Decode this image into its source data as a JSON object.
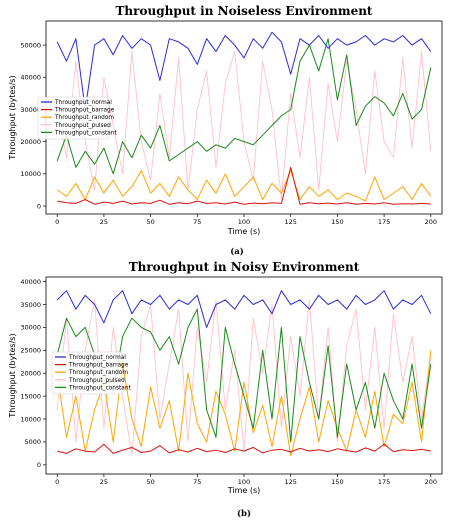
{
  "colors": {
    "Throughput_normal": "#2b2bd6",
    "Throughput_barrage": "#e01010",
    "Throughput_random": "#ffa500",
    "Throughput_pulsed": "#ffc0cb",
    "Throughput_constant": "#1a8a1a"
  },
  "chart_data": [
    {
      "type": "line",
      "title": "Throughput in Noiseless Environment",
      "xlabel": "Time (s)",
      "ylabel": "Throughput (bytes/s)",
      "caption": "(a)",
      "xlim": [
        -6,
        206
      ],
      "ylim": [
        -2500,
        57500
      ],
      "xticks": [
        0,
        25,
        50,
        75,
        100,
        125,
        150,
        175,
        200
      ],
      "yticks": [
        0,
        10000,
        20000,
        30000,
        40000,
        50000
      ],
      "legend": "center-left",
      "grid": false,
      "x": [
        0,
        5,
        10,
        15,
        20,
        25,
        30,
        35,
        40,
        45,
        50,
        55,
        60,
        65,
        70,
        75,
        80,
        85,
        90,
        95,
        100,
        105,
        110,
        115,
        120,
        125,
        130,
        135,
        140,
        145,
        150,
        155,
        160,
        165,
        170,
        175,
        180,
        185,
        190,
        195,
        200
      ],
      "series": [
        {
          "name": "Throughput_normal",
          "values": [
            51000,
            45000,
            52000,
            30000,
            50000,
            52000,
            47000,
            53000,
            49000,
            52000,
            50000,
            39000,
            52000,
            51000,
            49000,
            44000,
            52000,
            48000,
            53000,
            50000,
            46000,
            52000,
            49000,
            54000,
            51000,
            41000,
            52000,
            50000,
            53000,
            49000,
            52000,
            50000,
            51000,
            53000,
            50000,
            52000,
            51000,
            53000,
            50000,
            52000,
            48000
          ]
        },
        {
          "name": "Throughput_barrage",
          "values": [
            1500,
            1000,
            800,
            2000,
            500,
            1200,
            800,
            1500,
            600,
            1000,
            800,
            1800,
            500,
            1000,
            700,
            1500,
            800,
            1000,
            600,
            1200,
            500,
            900,
            700,
            1000,
            800,
            12000,
            500,
            1000,
            700,
            900,
            600,
            1000,
            500,
            800,
            600,
            1000,
            500,
            700,
            600,
            800,
            600
          ]
        },
        {
          "name": "Throughput_random",
          "values": [
            5000,
            3000,
            7000,
            2000,
            9000,
            4000,
            8000,
            3000,
            6000,
            11000,
            4000,
            7000,
            3000,
            9000,
            5000,
            2000,
            8000,
            4000,
            10000,
            3000,
            6000,
            9000,
            2000,
            7000,
            4000,
            11000,
            2000,
            6000,
            3000,
            5000,
            2000,
            4000,
            3000,
            1500,
            9000,
            2000,
            4000,
            6000,
            2000,
            7000,
            3000
          ]
        },
        {
          "name": "Throughput_pulsed",
          "values": [
            30000,
            15000,
            45000,
            20000,
            5000,
            40000,
            25000,
            10000,
            48000,
            20000,
            8000,
            35000,
            15000,
            46000,
            5000,
            30000,
            42000,
            12000,
            38000,
            48000,
            20000,
            8000,
            45000,
            30000,
            2000,
            35000,
            15000,
            40000,
            5000,
            38000,
            20000,
            45000,
            30000,
            10000,
            42000,
            20000,
            15000,
            46000,
            18000,
            48000,
            17000
          ]
        },
        {
          "name": "Throughput_constant",
          "values": [
            14000,
            22000,
            12000,
            17000,
            13000,
            18000,
            10000,
            20000,
            15000,
            22000,
            18000,
            25000,
            14000,
            16000,
            18000,
            20000,
            17000,
            19000,
            18000,
            21000,
            20000,
            19000,
            22000,
            25000,
            28000,
            30000,
            45000,
            50000,
            42000,
            52000,
            33000,
            47000,
            25000,
            31000,
            34000,
            32000,
            28000,
            35000,
            27000,
            30000,
            43000
          ]
        }
      ]
    },
    {
      "type": "line",
      "title": "Throughput in Noisy Environment",
      "xlabel": "Time (s)",
      "ylabel": "Throughput (bytes/s)",
      "caption": "(b)",
      "xlim": [
        -6,
        206
      ],
      "ylim": [
        -2000,
        41000
      ],
      "xticks": [
        0,
        25,
        50,
        75,
        100,
        125,
        150,
        175,
        200
      ],
      "yticks": [
        0,
        5000,
        10000,
        15000,
        20000,
        25000,
        30000,
        35000,
        40000
      ],
      "legend": "center-left",
      "grid": false,
      "x": [
        0,
        5,
        10,
        15,
        20,
        25,
        30,
        35,
        40,
        45,
        50,
        55,
        60,
        65,
        70,
        75,
        80,
        85,
        90,
        95,
        100,
        105,
        110,
        115,
        120,
        125,
        130,
        135,
        140,
        145,
        150,
        155,
        160,
        165,
        170,
        175,
        180,
        185,
        190,
        195,
        200
      ],
      "series": [
        {
          "name": "Throughput_normal",
          "values": [
            36000,
            38000,
            34000,
            37000,
            35000,
            31000,
            36000,
            38000,
            33000,
            36000,
            35000,
            37000,
            34000,
            36000,
            35000,
            37000,
            30000,
            35000,
            36000,
            34000,
            37000,
            35000,
            36000,
            33000,
            38000,
            35000,
            36000,
            34000,
            37000,
            35000,
            36000,
            34000,
            37000,
            35000,
            36000,
            38000,
            34000,
            36000,
            35000,
            37000,
            33000
          ]
        },
        {
          "name": "Throughput_barrage",
          "values": [
            3000,
            2500,
            3500,
            3000,
            2800,
            4500,
            2500,
            3200,
            3800,
            2700,
            3000,
            4200,
            2600,
            3300,
            2800,
            3600,
            2900,
            3200,
            2700,
            3500,
            3000,
            3800,
            2600,
            3200,
            3400,
            2800,
            3600,
            3000,
            3300,
            2900,
            3500,
            3100,
            2800,
            3700,
            3000,
            4500,
            2900,
            3300,
            3100,
            3400,
            3000
          ]
        },
        {
          "name": "Throughput_random",
          "values": [
            20000,
            6000,
            15000,
            3000,
            12000,
            18000,
            5000,
            22000,
            10000,
            4000,
            17000,
            8000,
            14000,
            3000,
            20000,
            9000,
            5000,
            16000,
            11000,
            3000,
            18000,
            7000,
            13000,
            4000,
            15000,
            2000,
            10000,
            17000,
            5000,
            14000,
            8000,
            3000,
            12000,
            6000,
            16000,
            4000,
            11000,
            9000,
            18000,
            5000,
            25000
          ]
        },
        {
          "name": "Throughput_pulsed",
          "values": [
            12000,
            32000,
            5000,
            25000,
            36000,
            8000,
            30000,
            15000,
            2000,
            28000,
            35000,
            10000,
            22000,
            34000,
            5000,
            30000,
            18000,
            36000,
            12000,
            25000,
            3000,
            32000,
            20000,
            35000,
            8000,
            28000,
            15000,
            36000,
            10000,
            30000,
            5000,
            26000,
            34000,
            12000,
            30000,
            8000,
            33000,
            18000,
            28000,
            10000,
            24000
          ]
        },
        {
          "name": "Throughput_constant",
          "values": [
            24000,
            32000,
            28000,
            30000,
            24000,
            20000,
            16000,
            28000,
            32000,
            30000,
            29000,
            25000,
            28000,
            22000,
            30000,
            34000,
            12000,
            6000,
            30000,
            22000,
            15000,
            8000,
            25000,
            10000,
            30000,
            5000,
            28000,
            18000,
            10000,
            26000,
            6000,
            22000,
            12000,
            18000,
            8000,
            20000,
            14000,
            10000,
            22000,
            8000,
            22000
          ]
        }
      ]
    }
  ]
}
